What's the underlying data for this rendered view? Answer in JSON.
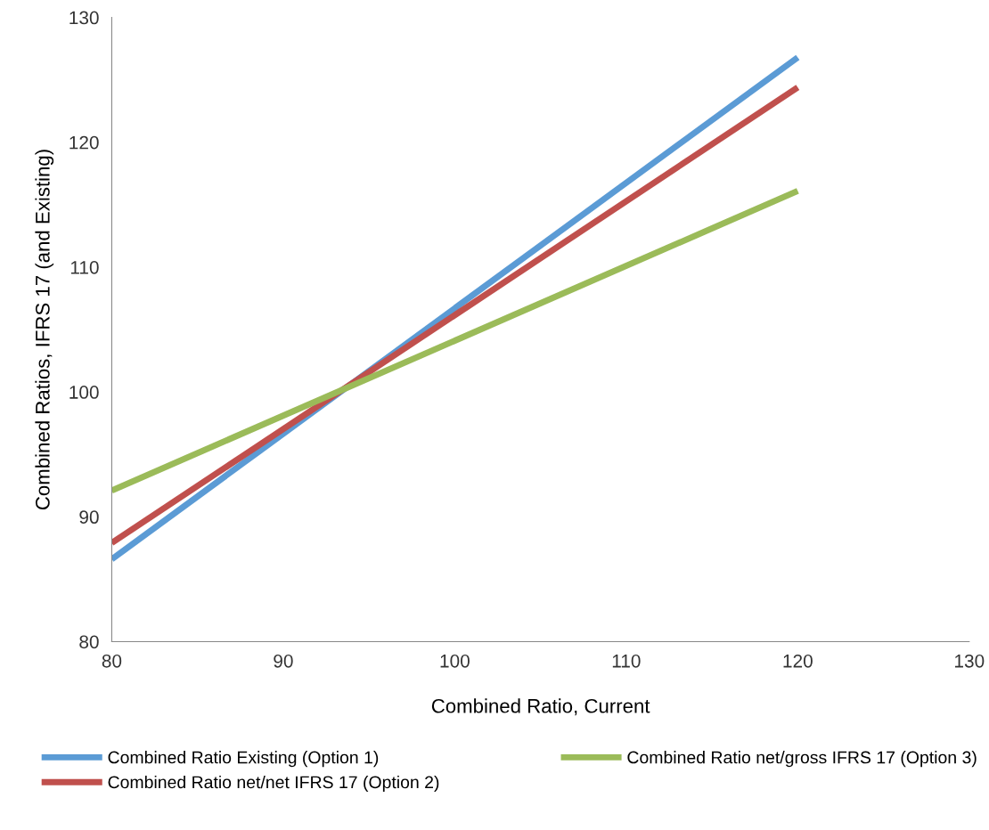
{
  "chart_data": {
    "type": "line",
    "xlabel": "Combined Ratio, Current",
    "ylabel": "Combined Ratios, IFRS 17 (and Existing)",
    "x": [
      80,
      120
    ],
    "series": [
      {
        "name": "Combined Ratio Existing (Option 1)",
        "color": "#5b9bd5",
        "values": [
          86.6,
          126.8
        ]
      },
      {
        "name": "Combined Ratio net/net IFRS 17 (Option 2)",
        "color": "#c0504d",
        "values": [
          87.9,
          124.4
        ]
      },
      {
        "name": "Combined Ratio net/gross IFRS 17 (Option 3)",
        "color": "#9bbb59",
        "values": [
          92.1,
          116.1
        ]
      }
    ],
    "xlim": [
      80,
      130
    ],
    "xticks": [
      80,
      90,
      100,
      110,
      120,
      130
    ],
    "ylim": [
      80,
      130
    ],
    "yticks": [
      80,
      90,
      100,
      110,
      120,
      130
    ],
    "grid": false,
    "legend": "bottom",
    "marker": "none",
    "line_style": "solid"
  }
}
